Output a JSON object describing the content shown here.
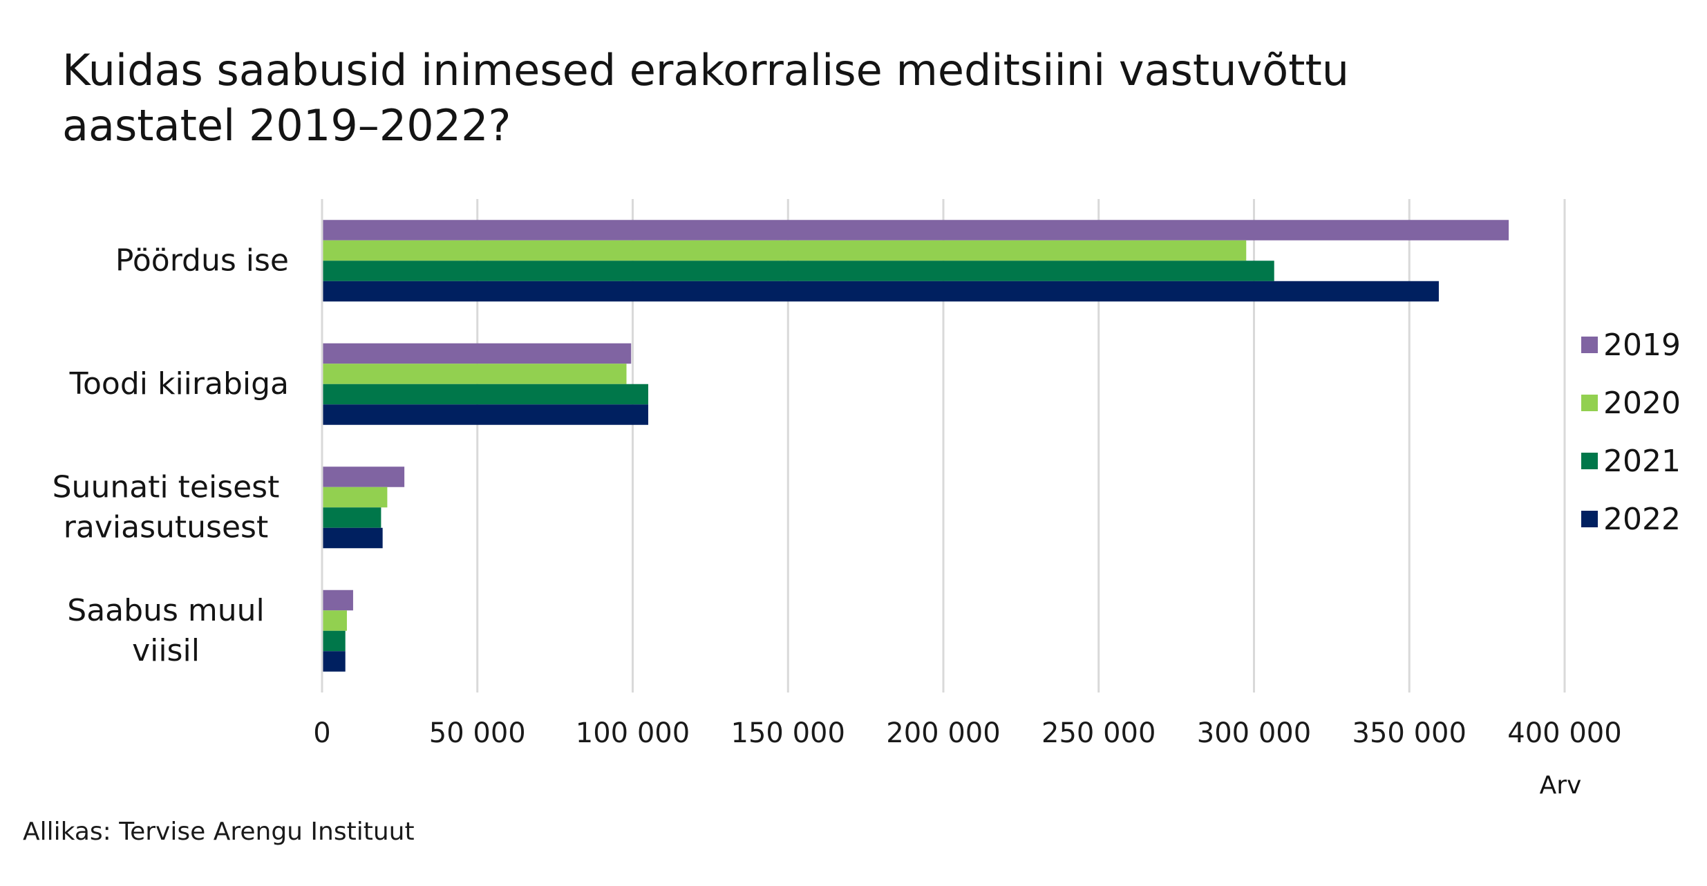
{
  "chart_data": {
    "type": "bar",
    "orientation": "horizontal",
    "title_lines": [
      "Kuidas saabusid inimesed erakorralise meditsiini vastuvõttu",
      "aastatel 2019–2022?"
    ],
    "categories": [
      [
        "Pöördus ise"
      ],
      [
        "Toodi kiirabiga"
      ],
      [
        "Suunati teisest",
        "raviasutusest"
      ],
      [
        "Saabus muul",
        "viisil"
      ]
    ],
    "series": [
      {
        "name": "2019",
        "color": "#8064A2",
        "values": [
          382000,
          99500,
          26500,
          10000
        ]
      },
      {
        "name": "2020",
        "color": "#92D050",
        "values": [
          297500,
          98000,
          21000,
          8000
        ]
      },
      {
        "name": "2021",
        "color": "#00774A",
        "values": [
          306500,
          105000,
          19000,
          7500
        ]
      },
      {
        "name": "2022",
        "color": "#002060",
        "values": [
          359500,
          105000,
          19500,
          7500
        ]
      }
    ],
    "xlim": [
      0,
      400000
    ],
    "xticks": [
      0,
      50000,
      100000,
      150000,
      200000,
      250000,
      300000,
      350000,
      400000
    ],
    "xtick_labels": [
      "0",
      "50 000",
      "100 000",
      "150 000",
      "200 000",
      "250 000",
      "300 000",
      "350 000",
      "400 000"
    ],
    "xlabel": "Arv",
    "ylabel": "",
    "grid": "vertical",
    "legend_position": "right"
  },
  "source": "Allikas: Tervise Arengu Instituut"
}
